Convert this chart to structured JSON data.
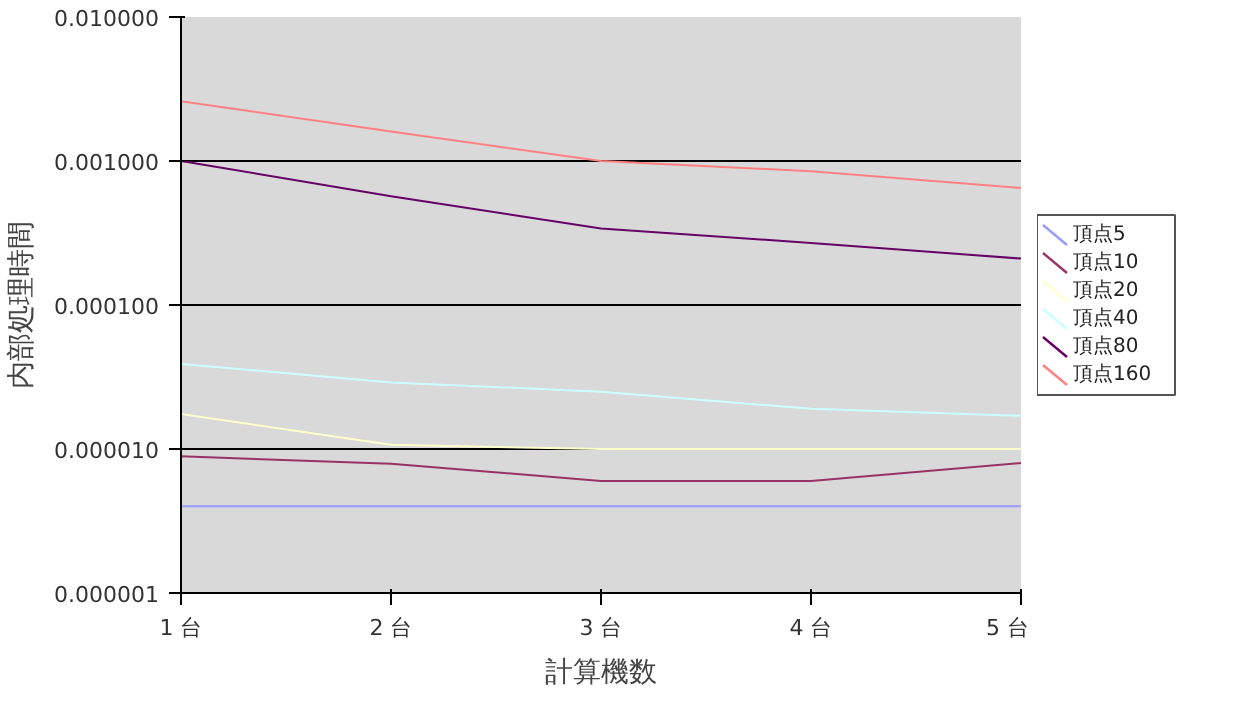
{
  "chart_data": {
    "type": "line",
    "xlabel": "計算機数",
    "ylabel": "内部処理時間",
    "categories": [
      "1 台",
      "2 台",
      "3 台",
      "4 台",
      "5 台"
    ],
    "log": "y",
    "ylim": [
      1e-06,
      0.01
    ],
    "yticks": [
      {
        "value": 1e-06,
        "label": "0.000001"
      },
      {
        "value": 1e-05,
        "label": "0.000010"
      },
      {
        "value": 0.0001,
        "label": "0.000100"
      },
      {
        "value": 0.001,
        "label": "0.001000"
      },
      {
        "value": 0.01,
        "label": "0.010000"
      }
    ],
    "grid": "y",
    "legend": "right",
    "marker": "none",
    "series": [
      {
        "name": "頂点5",
        "color": "#9999ff",
        "values": [
          4e-06,
          4e-06,
          4e-06,
          4e-06,
          4e-06
        ]
      },
      {
        "name": "頂点10",
        "color": "#993366",
        "values": [
          8.9e-06,
          7.9e-06,
          6e-06,
          6e-06,
          8e-06
        ]
      },
      {
        "name": "頂点20",
        "color": "#ffffcc",
        "values": [
          1.75e-05,
          1.07e-05,
          1e-05,
          1e-05,
          1e-05
        ]
      },
      {
        "name": "頂点40",
        "color": "#ccffff",
        "values": [
          3.9e-05,
          2.9e-05,
          2.5e-05,
          1.9e-05,
          1.7e-05
        ]
      },
      {
        "name": "頂点80",
        "color": "#660066",
        "values": [
          0.001,
          0.00057,
          0.00034,
          0.00027,
          0.00021
        ]
      },
      {
        "name": "頂点160",
        "color": "#ff8080",
        "values": [
          0.0026,
          0.0016,
          0.001,
          0.00085,
          0.00065
        ]
      }
    ]
  }
}
